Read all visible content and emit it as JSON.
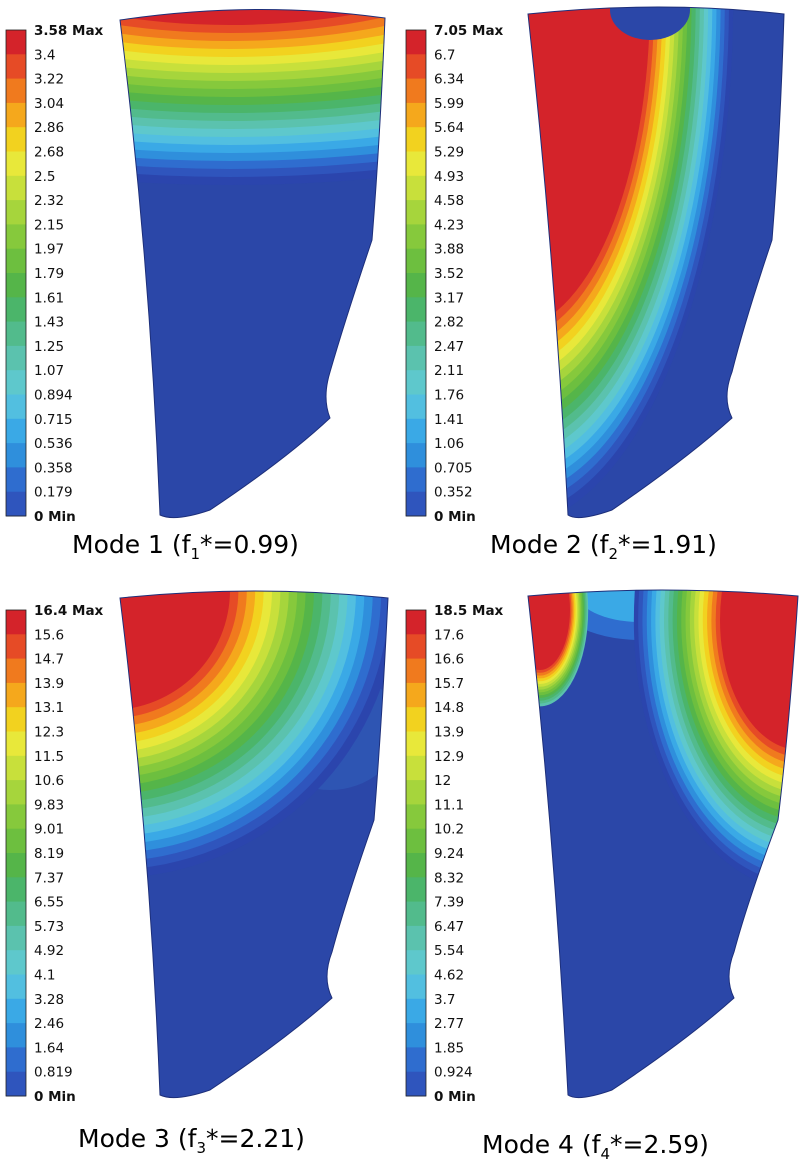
{
  "panels": [
    {
      "caption": {
        "prefix": "Mode 1 (f",
        "sub": "1",
        "suffix": "*=0.99)"
      },
      "legend": {
        "max_label": "3.58 Max",
        "min_label": "0 Min",
        "labels": [
          "3.58 Max",
          "3.4",
          "3.22",
          "3.04",
          "2.86",
          "2.68",
          "2.5",
          "2.32",
          "2.15",
          "1.97",
          "1.79",
          "1.61",
          "1.43",
          "1.25",
          "1.07",
          "0.894",
          "0.715",
          "0.536",
          "0.358",
          "0.179",
          "0 Min"
        ]
      }
    },
    {
      "caption": {
        "prefix": "Mode 2 (f",
        "sub": "2",
        "suffix": "*=1.91)"
      },
      "legend": {
        "max_label": "7.05 Max",
        "min_label": "0 Min",
        "labels": [
          "7.05 Max",
          "6.7",
          "6.34",
          "5.99",
          "5.64",
          "5.29",
          "4.93",
          "4.58",
          "4.23",
          "3.88",
          "3.52",
          "3.17",
          "2.82",
          "2.47",
          "2.11",
          "1.76",
          "1.41",
          "1.06",
          "0.705",
          "0.352",
          "0 Min"
        ]
      }
    },
    {
      "caption": {
        "prefix": "Mode 3 (f",
        "sub": "3",
        "suffix": "*=2.21)"
      },
      "legend": {
        "max_label": "16.4 Max",
        "min_label": "0 Min",
        "labels": [
          "16.4 Max",
          "15.6",
          "14.7",
          "13.9",
          "13.1",
          "12.3",
          "11.5",
          "10.6",
          "9.83",
          "9.01",
          "8.19",
          "7.37",
          "6.55",
          "5.73",
          "4.92",
          "4.1",
          "3.28",
          "2.46",
          "1.64",
          "0.819",
          "0 Min"
        ]
      }
    },
    {
      "caption": {
        "prefix": "Mode 4 (f",
        "sub": "4",
        "suffix": "*=2.59)"
      },
      "legend": {
        "max_label": "18.5 Max",
        "min_label": "0 Min",
        "labels": [
          "18.5 Max",
          "17.6",
          "16.6",
          "15.7",
          "14.8",
          "13.9",
          "12.9",
          "12",
          "11.1",
          "10.2",
          "9.24",
          "8.32",
          "7.39",
          "6.47",
          "5.54",
          "4.62",
          "3.7",
          "2.77",
          "1.85",
          "0.924",
          "0 Min"
        ]
      }
    }
  ],
  "colors": {
    "scale": [
      "#d4232a",
      "#e64b26",
      "#f07a1e",
      "#f5a81c",
      "#f2d21f",
      "#e8e83a",
      "#c8e03b",
      "#a6d53c",
      "#86c93c",
      "#6dbf3f",
      "#55b549",
      "#4bb56a",
      "#52bb8c",
      "#5bc2ae",
      "#5ec8cc",
      "#52bfe0",
      "#3aa9e6",
      "#2f8fdc",
      "#2f6dcf",
      "#2f55bd",
      "#2b45ad"
    ],
    "base_blue": "#2b47a8"
  }
}
